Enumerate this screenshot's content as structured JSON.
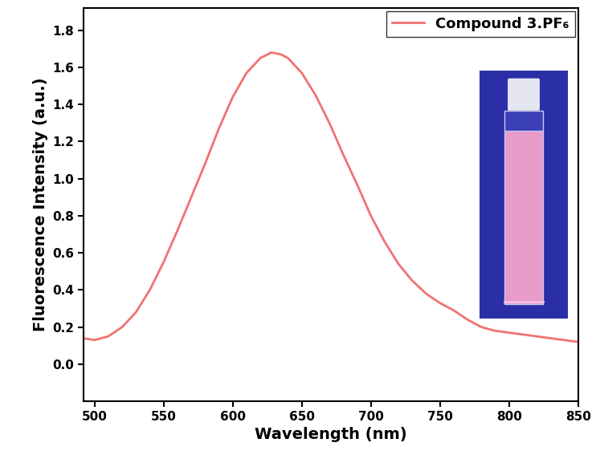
{
  "chart_data": {
    "type": "line",
    "x_label": "Wavelength (nm)",
    "y_label": "Fluorescence Intensity (a.u.)",
    "x": [
      492,
      500,
      510,
      520,
      530,
      540,
      550,
      560,
      570,
      580,
      590,
      600,
      610,
      620,
      628,
      635,
      640,
      650,
      660,
      670,
      680,
      690,
      700,
      710,
      720,
      730,
      740,
      750,
      760,
      770,
      780,
      790,
      800,
      820,
      840,
      850
    ],
    "series": [
      {
        "name": "Compound 3.PF₆",
        "color": "#f07272",
        "line_style": "solid",
        "values": [
          0.14,
          0.13,
          0.15,
          0.2,
          0.28,
          0.4,
          0.55,
          0.72,
          0.9,
          1.08,
          1.27,
          1.44,
          1.57,
          1.65,
          1.68,
          1.67,
          1.65,
          1.57,
          1.45,
          1.3,
          1.13,
          0.97,
          0.8,
          0.66,
          0.54,
          0.45,
          0.38,
          0.33,
          0.29,
          0.24,
          0.2,
          0.18,
          0.17,
          0.15,
          0.13,
          0.12
        ]
      }
    ],
    "xlim": [
      492,
      850
    ],
    "xticks": [
      500,
      550,
      600,
      650,
      700,
      750,
      800,
      850
    ],
    "ylim": [
      -0.2,
      1.92
    ],
    "yticks": [
      {
        "value": 0.0,
        "label": "0.0"
      },
      {
        "value": 0.2,
        "label": "0.2"
      },
      {
        "value": 0.4,
        "label": "0.4"
      },
      {
        "value": 0.6,
        "label": "0.6"
      },
      {
        "value": 0.8,
        "label": "0.8"
      },
      {
        "value": 1.0,
        "label": "1.0"
      },
      {
        "value": 1.2,
        "label": "1.2"
      },
      {
        "value": 1.4,
        "label": "1.4"
      },
      {
        "value": 1.6,
        "label": "1.6"
      },
      {
        "value": 1.8,
        "label": "1.8"
      }
    ],
    "legend": "upper right",
    "grid": false
  }
}
